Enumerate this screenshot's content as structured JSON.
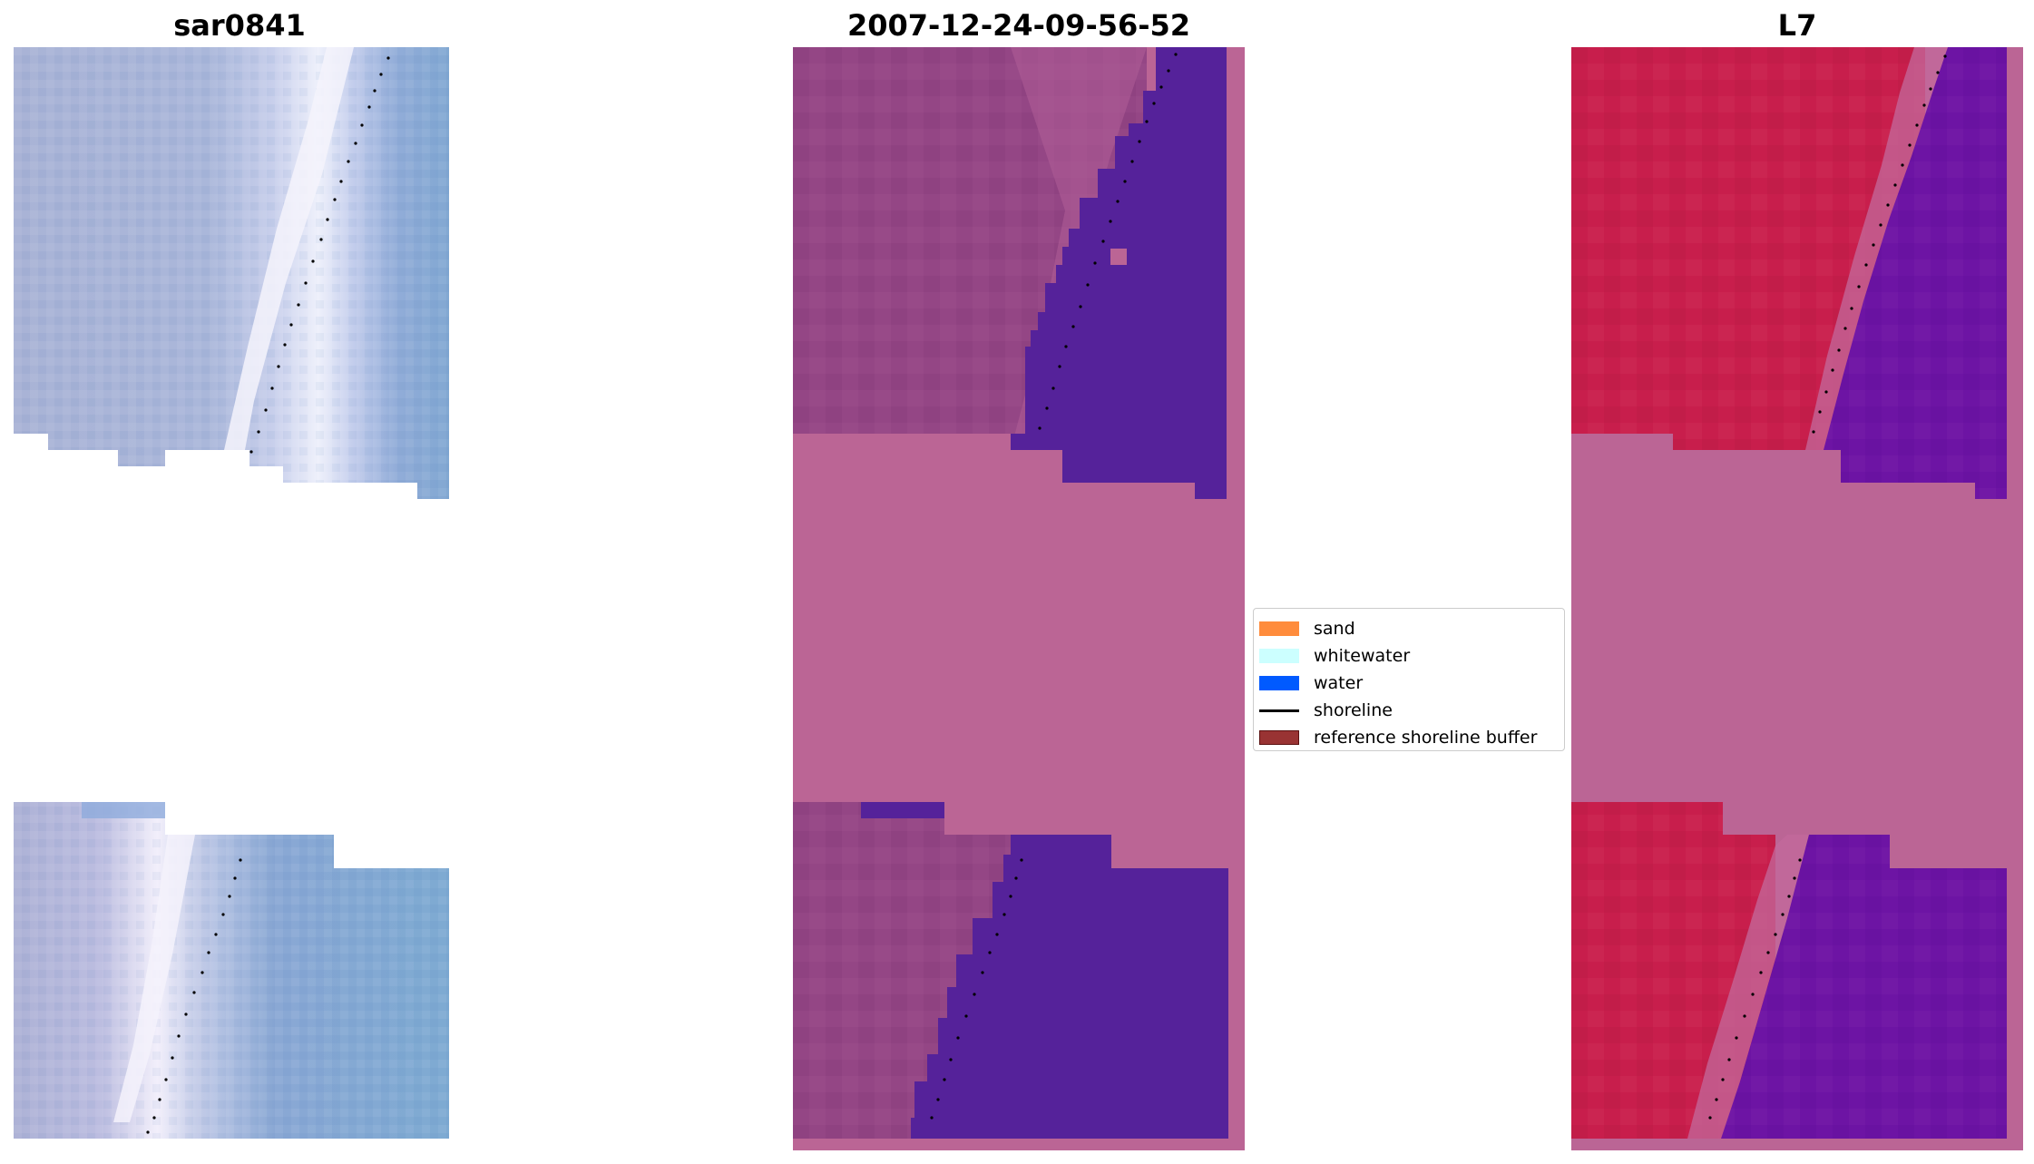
{
  "panels": [
    {
      "title": "sar0841"
    },
    {
      "title": "2007-12-24-09-56-52"
    },
    {
      "title": "L7"
    }
  ],
  "colors": {
    "nodata": "#bb6595",
    "sar_light": "#a6b6d8",
    "sar_water": "#7ea9d2",
    "sar_white": "#f1f0fb",
    "land_purple": "#944685",
    "water_indigo": "#55229a",
    "land_red": "#c81e4c",
    "water_violet": "#6d14a4",
    "shoreline_points": "#000000"
  },
  "legend": {
    "items": [
      {
        "label": "sand",
        "type": "patch",
        "color": "#ff8c3c",
        "edge": "#ff8c3c"
      },
      {
        "label": "whitewater",
        "type": "patch",
        "color": "#ccffff",
        "edge": "#ccffff"
      },
      {
        "label": "water",
        "type": "patch",
        "color": "#005aff",
        "edge": "#005aff"
      },
      {
        "label": "shoreline",
        "type": "line",
        "color": "#000000"
      },
      {
        "label": "reference shoreline buffer",
        "type": "patch",
        "color": "#993333",
        "edge": "#5a1010"
      }
    ]
  }
}
